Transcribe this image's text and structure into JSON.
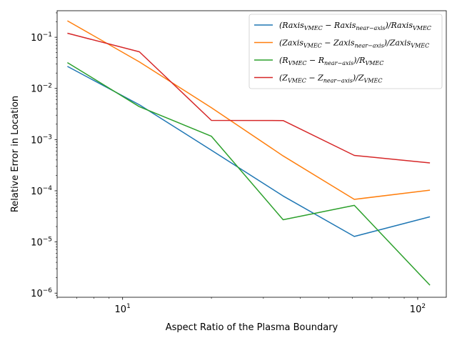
{
  "chart_data": {
    "type": "line",
    "xscale": "log",
    "yscale": "log",
    "xlim": [
      6.0,
      125
    ],
    "ylim": [
      8.3e-07,
      0.33
    ],
    "xlabel": "Aspect Ratio of the Plasma Boundary",
    "ylabel": "Relative Error in Location",
    "grid": false,
    "legend_position": "top-right",
    "x_major_ticks": [
      {
        "value": 10,
        "base": "10",
        "exp": "1"
      },
      {
        "value": 100,
        "base": "10",
        "exp": "2"
      }
    ],
    "y_major_ticks": [
      {
        "value": 1e-06,
        "base": "10",
        "exp": "−6"
      },
      {
        "value": 1e-05,
        "base": "10",
        "exp": "−5"
      },
      {
        "value": 0.0001,
        "base": "10",
        "exp": "−4"
      },
      {
        "value": 0.001,
        "base": "10",
        "exp": "−3"
      },
      {
        "value": 0.01,
        "base": "10",
        "exp": "−2"
      },
      {
        "value": 0.1,
        "base": "10",
        "exp": "−1"
      }
    ],
    "series": [
      {
        "name": "(Raxis_VMEC − Raxis_near−axis)/Raxis_VMEC",
        "legend": {
          "a": "(Raxis",
          "a_sub": "VMEC",
          "b": " − Raxis",
          "b_sub": "near−axis",
          "c": ")/Raxis",
          "c_sub": "VMEC"
        },
        "color": "#1f77b4",
        "x": [
          6.5,
          11.4,
          20,
          35,
          61,
          110
        ],
        "y": [
          0.027,
          0.0048,
          0.00062,
          7.9e-05,
          1.28e-05,
          3.1e-05
        ]
      },
      {
        "name": "(Zaxis_VMEC − Zaxis_near−axis)/Zaxis_VMEC",
        "legend": {
          "a": "(Zaxis",
          "a_sub": "VMEC",
          "b": " − Zaxis",
          "b_sub": "near−axis",
          "c": ")/Zaxis",
          "c_sub": "VMEC"
        },
        "color": "#ff7f0e",
        "x": [
          6.5,
          11.4,
          20,
          35,
          61,
          110
        ],
        "y": [
          0.21,
          0.033,
          0.0042,
          0.00048,
          6.8e-05,
          0.000103
        ]
      },
      {
        "name": "(R_VMEC − R_near−axis)/R_VMEC",
        "legend": {
          "a": "(R",
          "a_sub": "VMEC",
          "b": " − R",
          "b_sub": "near−axis",
          "c": ")/R",
          "c_sub": "VMEC"
        },
        "color": "#2ca02c",
        "x": [
          6.5,
          11.4,
          20,
          35,
          61,
          110
        ],
        "y": [
          0.032,
          0.0044,
          0.00116,
          2.72e-05,
          5.18e-05,
          1.43e-06
        ]
      },
      {
        "name": "(Z_VMEC − Z_near−axis)/Z_VMEC",
        "legend": {
          "a": "(Z",
          "a_sub": "VMEC",
          "b": " − Z",
          "b_sub": "near−axis",
          "c": ")/Z",
          "c_sub": "VMEC"
        },
        "color": "#d62728",
        "x": [
          6.5,
          11.4,
          20,
          35,
          61,
          110
        ],
        "y": [
          0.12,
          0.052,
          0.00237,
          0.00236,
          0.00049,
          0.00035
        ]
      }
    ]
  }
}
